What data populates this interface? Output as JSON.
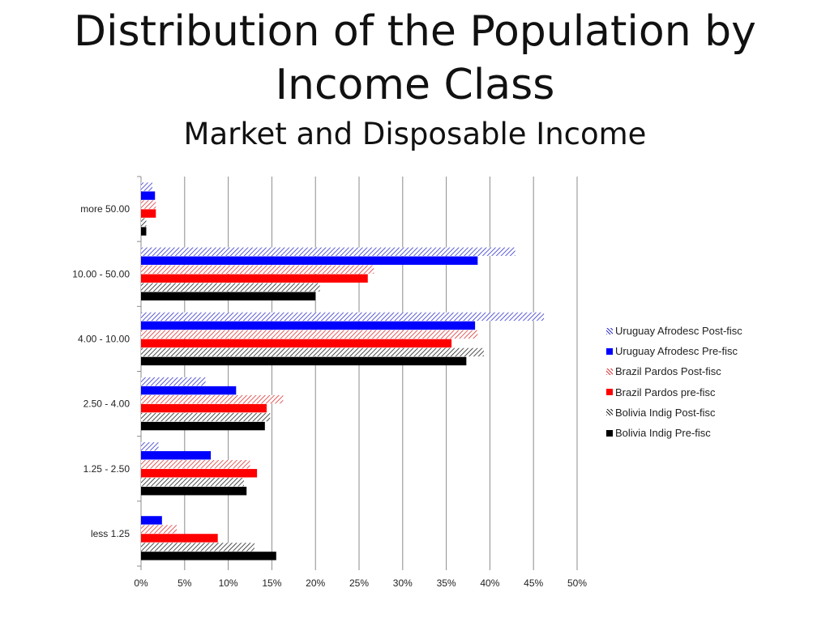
{
  "slide": {
    "title_line1": "Distribution of the Population by",
    "title_line2": "Income Class",
    "subtitle": "Market and Disposable Income"
  },
  "chart_data": {
    "type": "bar",
    "orientation": "horizontal",
    "categories": [
      "more 50.00",
      "10.00 - 50.00",
      "4.00 - 10.00",
      "2.50 -  4.00",
      "1.25 - 2.50",
      "less 1.25"
    ],
    "xlim": [
      0,
      50
    ],
    "xticks": [
      "0%",
      "5%",
      "10%",
      "15%",
      "20%",
      "25%",
      "30%",
      "35%",
      "40%",
      "45%",
      "50%"
    ],
    "grid": "vertical",
    "legend_position": "right",
    "series": [
      {
        "name": "Uruguay Afrodesc Post-fisc",
        "color": "#3333cc",
        "pattern": "hatch",
        "values": [
          1.3,
          42.9,
          46.2,
          7.4,
          2.0,
          0
        ]
      },
      {
        "name": "Uruguay Afrodesc Pre-fisc",
        "color": "#0000ff",
        "pattern": "solid",
        "values": [
          1.6,
          38.6,
          38.3,
          10.9,
          8.0,
          2.4
        ]
      },
      {
        "name": "Brazil Pardos Post-fisc",
        "color": "#dd3333",
        "pattern": "hatch",
        "values": [
          1.7,
          26.7,
          38.6,
          16.3,
          12.5,
          4.1
        ]
      },
      {
        "name": "Brazil Pardos pre-fisc",
        "color": "#ff0000",
        "pattern": "solid",
        "values": [
          1.7,
          26.0,
          35.6,
          14.4,
          13.3,
          8.8
        ]
      },
      {
        "name": "Bolivia Indig Post-fisc",
        "color": "#222222",
        "pattern": "hatch",
        "values": [
          0.6,
          20.5,
          39.3,
          14.8,
          11.8,
          13.0
        ]
      },
      {
        "name": "Bolivia Indig Pre-fisc",
        "color": "#000000",
        "pattern": "solid",
        "values": [
          0.6,
          20.0,
          37.3,
          14.2,
          12.1,
          15.5
        ]
      }
    ]
  }
}
